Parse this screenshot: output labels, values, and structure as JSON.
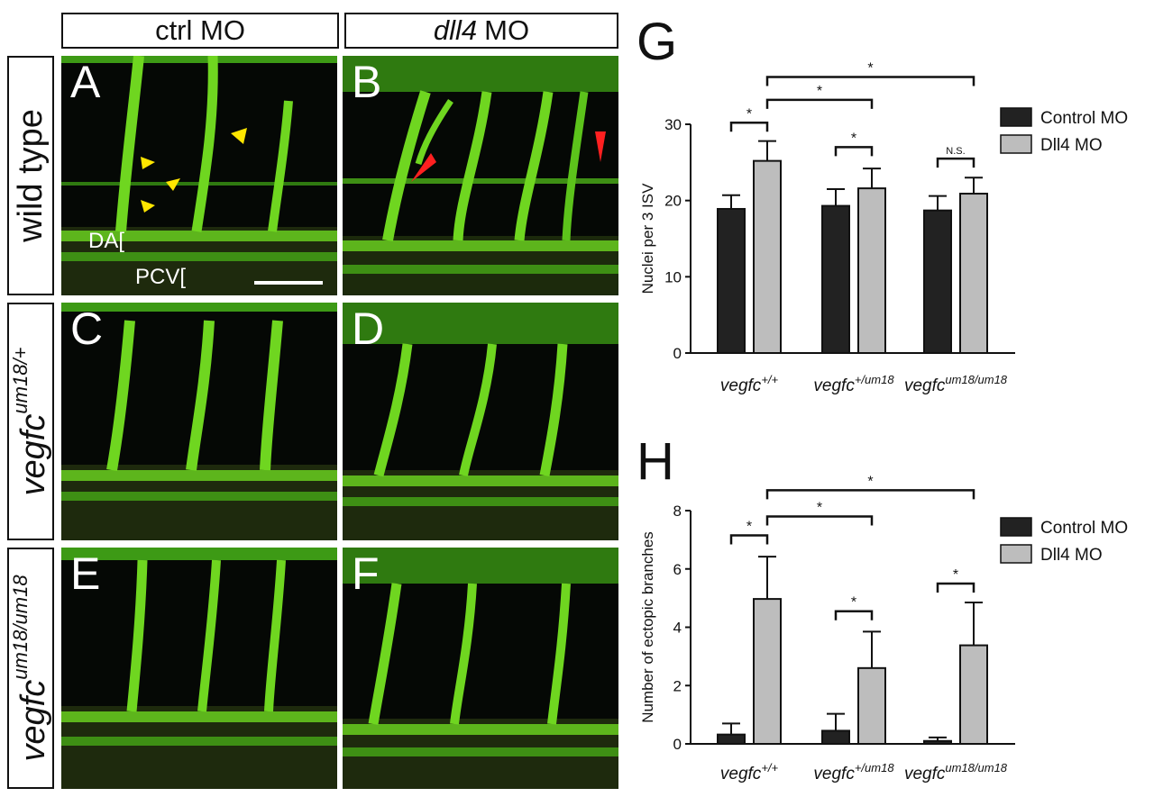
{
  "figure": {
    "column_headers": [
      {
        "text": "ctrl MO",
        "italic_part": ""
      },
      {
        "text": "MO",
        "italic_part": "dll4"
      }
    ],
    "row_headers": [
      {
        "base": "wild type",
        "sup": ""
      },
      {
        "base": "vegfc",
        "sup": "um18/+"
      },
      {
        "base": "vegfc",
        "sup": "um18/um18"
      }
    ],
    "panels": [
      "A",
      "B",
      "C",
      "D",
      "E",
      "F"
    ],
    "annotations": {
      "da": "DA[",
      "pcv": "PCV["
    }
  },
  "chart_data": [
    {
      "type": "bar",
      "panel_letter": "G",
      "ylabel": "Nuclei per 3 ISV",
      "ylim": [
        0,
        30
      ],
      "yticks": [
        0,
        10,
        20,
        30
      ],
      "categories": [
        {
          "base": "vegfc",
          "sup": "+/+"
        },
        {
          "base": "vegfc",
          "sup": "+/um18"
        },
        {
          "base": "vegfc",
          "sup": "um18/um18"
        }
      ],
      "series": [
        {
          "name": "Control MO",
          "color": "#222222",
          "values": [
            18.9,
            19.3,
            18.7
          ],
          "errors": [
            1.8,
            2.2,
            1.9
          ]
        },
        {
          "name": "Dll4 MO",
          "color": "#bdbdbd",
          "values": [
            25.2,
            21.6,
            20.9
          ],
          "errors": [
            2.6,
            2.6,
            2.1
          ]
        }
      ],
      "legend_position": "top-right",
      "significance": [
        {
          "label": "*",
          "from": [
            0,
            0
          ],
          "to": [
            0,
            1
          ],
          "level": 30.2
        },
        {
          "label": "*",
          "from": [
            1,
            0
          ],
          "to": [
            1,
            1
          ],
          "level": 27.0
        },
        {
          "label": "N.S.",
          "from": [
            2,
            0
          ],
          "to": [
            2,
            1
          ],
          "level": 25.5
        },
        {
          "label": "*",
          "from": [
            0,
            1
          ],
          "to": [
            1,
            1
          ],
          "level": 33.2
        },
        {
          "label": "*",
          "from": [
            0,
            1
          ],
          "to": [
            2,
            1
          ],
          "level": 36.2
        }
      ]
    },
    {
      "type": "bar",
      "panel_letter": "H",
      "ylabel": "Number of ectopic branches",
      "ylim": [
        0,
        8
      ],
      "yticks": [
        0,
        2,
        4,
        6,
        8
      ],
      "categories": [
        {
          "base": "vegfc",
          "sup": "+/+"
        },
        {
          "base": "vegfc",
          "sup": "+/um18"
        },
        {
          "base": "vegfc",
          "sup": "um18/um18"
        }
      ],
      "series": [
        {
          "name": "Control MO",
          "color": "#222222",
          "values": [
            0.32,
            0.45,
            0.1
          ],
          "errors": [
            0.38,
            0.58,
            0.12
          ]
        },
        {
          "name": "Dll4 MO",
          "color": "#bdbdbd",
          "values": [
            4.97,
            2.6,
            3.38
          ],
          "errors": [
            1.45,
            1.25,
            1.47
          ]
        }
      ],
      "legend_position": "top-right",
      "significance": [
        {
          "label": "*",
          "from": [
            0,
            0
          ],
          "to": [
            0,
            1
          ],
          "level": 7.15
        },
        {
          "label": "*",
          "from": [
            1,
            0
          ],
          "to": [
            1,
            1
          ],
          "level": 4.55
        },
        {
          "label": "*",
          "from": [
            2,
            0
          ],
          "to": [
            2,
            1
          ],
          "level": 5.5
        },
        {
          "label": "*",
          "from": [
            0,
            1
          ],
          "to": [
            1,
            1
          ],
          "level": 7.8
        },
        {
          "label": "*",
          "from": [
            0,
            1
          ],
          "to": [
            2,
            1
          ],
          "level": 8.7
        }
      ]
    }
  ]
}
